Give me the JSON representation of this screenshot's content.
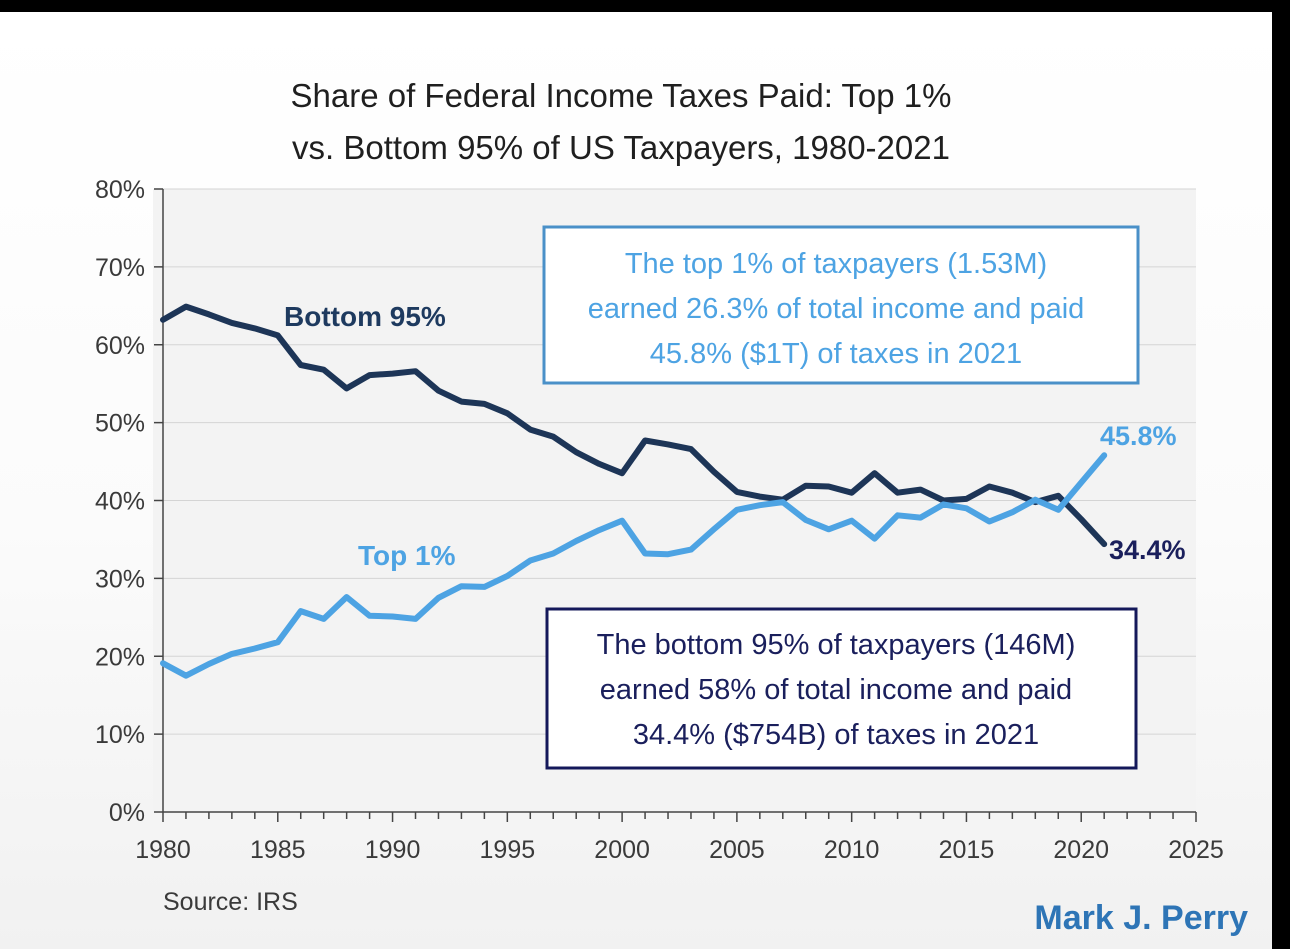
{
  "colors": {
    "top1": "#4da3e3",
    "bottom95": "#1d3557",
    "bottom95_label": "#1e3a5f",
    "note_top_border": "#4a90c8",
    "note_bottom_border": "#14185a",
    "note_bottom_text": "#1a1f5c",
    "grid": "#d4d4d4",
    "axis": "#444444",
    "credit": "#2e75b6"
  },
  "chart_data": {
    "type": "line",
    "title_lines": [
      "Share of Federal Income Taxes Paid: Top 1%",
      "vs. Bottom 95% of US Taxpayers, 1980-2021"
    ],
    "xlim": [
      1980,
      2025
    ],
    "ylim": [
      0,
      80
    ],
    "x_ticks": [
      "1980",
      "1985",
      "1990",
      "1995",
      "2000",
      "2005",
      "2010",
      "2015",
      "2020",
      "2025"
    ],
    "y_ticks": [
      "0%",
      "10%",
      "20%",
      "30%",
      "40%",
      "50%",
      "60%",
      "70%",
      "80%"
    ],
    "grid": true,
    "x": [
      1980,
      1981,
      1982,
      1983,
      1984,
      1985,
      1986,
      1987,
      1988,
      1989,
      1990,
      1991,
      1992,
      1993,
      1994,
      1995,
      1996,
      1997,
      1998,
      1999,
      2000,
      2001,
      2002,
      2003,
      2004,
      2005,
      2006,
      2007,
      2008,
      2009,
      2010,
      2011,
      2012,
      2013,
      2014,
      2015,
      2016,
      2017,
      2018,
      2019,
      2020,
      2021
    ],
    "series": [
      {
        "name": "Bottom 95%",
        "color_key": "bottom95",
        "values": [
          63.2,
          64.9,
          63.9,
          62.8,
          62.1,
          61.2,
          57.4,
          56.8,
          54.4,
          56.1,
          56.3,
          56.6,
          54.1,
          52.7,
          52.4,
          51.2,
          49.1,
          48.2,
          46.2,
          44.7,
          43.5,
          47.7,
          47.2,
          46.6,
          43.7,
          41.1,
          40.5,
          40.1,
          41.9,
          41.8,
          41.0,
          43.5,
          41.0,
          41.4,
          40.0,
          40.2,
          41.8,
          41.0,
          39.8,
          40.6,
          37.6,
          34.4
        ]
      },
      {
        "name": "Top 1%",
        "color_key": "top1",
        "values": [
          19.1,
          17.5,
          19.0,
          20.3,
          21.0,
          21.8,
          25.8,
          24.8,
          27.6,
          25.2,
          25.1,
          24.8,
          27.5,
          29.0,
          28.9,
          30.3,
          32.3,
          33.2,
          34.8,
          36.2,
          37.4,
          33.2,
          33.1,
          33.7,
          36.3,
          38.8,
          39.4,
          39.8,
          37.5,
          36.3,
          37.4,
          35.1,
          38.1,
          37.8,
          39.5,
          39.0,
          37.3,
          38.5,
          40.1,
          38.8,
          42.3,
          45.8
        ]
      }
    ],
    "end_labels": {
      "top1": "45.8%",
      "bottom95": "34.4%"
    },
    "annotations": {
      "top_box": [
        "The top 1% of taxpayers (1.53M)",
        "earned 26.3% of total income and paid",
        "45.8% ($1T) of taxes in 2021"
      ],
      "bottom_box": [
        "The bottom 95% of taxpayers (146M)",
        "earned 58% of total income and paid",
        "34.4% ($754B) of taxes in 2021"
      ]
    },
    "source": "Source: IRS",
    "credit": "Mark J. Perry"
  }
}
